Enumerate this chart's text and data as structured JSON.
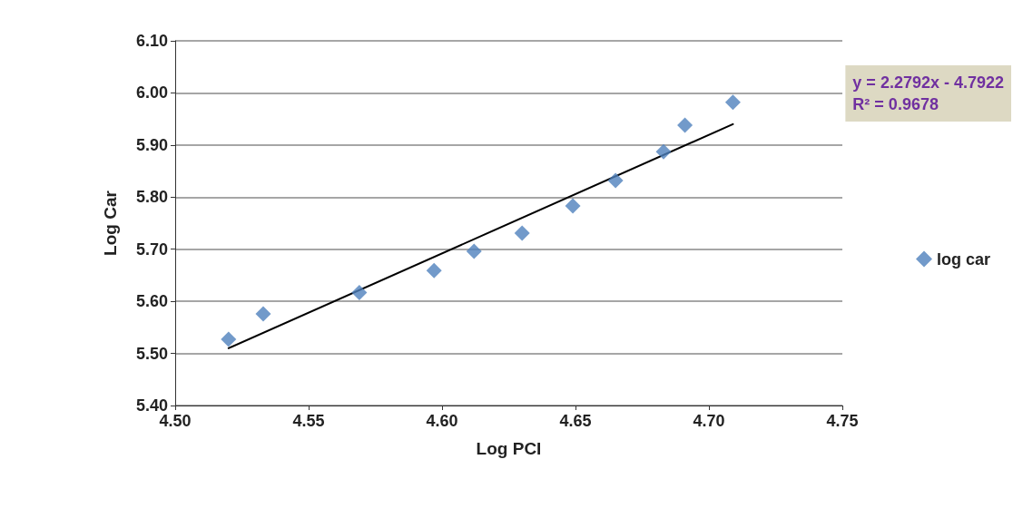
{
  "chart_data": {
    "type": "scatter",
    "xlabel": "Log PCI",
    "ylabel": "Log Car",
    "series": [
      {
        "name": "log car",
        "color": "#4f81bd",
        "marker": "diamond",
        "x": [
          4.52,
          4.533,
          4.569,
          4.597,
          4.612,
          4.63,
          4.649,
          4.665,
          4.683,
          4.691,
          4.709
        ],
        "values": [
          5.527,
          5.576,
          5.617,
          5.659,
          5.696,
          5.731,
          5.783,
          5.832,
          5.887,
          5.938,
          5.982
        ]
      },
      {
        "type": "line",
        "color": "#000000",
        "marker": "none",
        "line_style": "solid",
        "x": [
          4.52,
          4.709
        ],
        "values": [
          5.51,
          5.94
        ]
      }
    ],
    "xlim": [
      4.5,
      4.75
    ],
    "xticks": [
      {
        "value": 4.5,
        "label": "4.50"
      },
      {
        "value": 4.55,
        "label": "4.55"
      },
      {
        "value": 4.6,
        "label": "4.60"
      },
      {
        "value": 4.65,
        "label": "4.65"
      },
      {
        "value": 4.7,
        "label": "4.70"
      },
      {
        "value": 4.75,
        "label": "4.75"
      }
    ],
    "ylim": [
      5.4,
      6.1
    ],
    "yticks": [
      {
        "value": 5.4,
        "label": "5.40"
      },
      {
        "value": 5.5,
        "label": "5.50"
      },
      {
        "value": 5.6,
        "label": "5.60"
      },
      {
        "value": 5.7,
        "label": "5.70"
      },
      {
        "value": 5.8,
        "label": "5.80"
      },
      {
        "value": 5.9,
        "label": "5.90"
      },
      {
        "value": 6.0,
        "label": "6.00"
      },
      {
        "value": 6.1,
        "label": "6.10"
      }
    ],
    "grid": "y",
    "legend": "right",
    "annotations": [
      "y = 2.2792x - 4.7922",
      "R² = 0.9678"
    ]
  }
}
